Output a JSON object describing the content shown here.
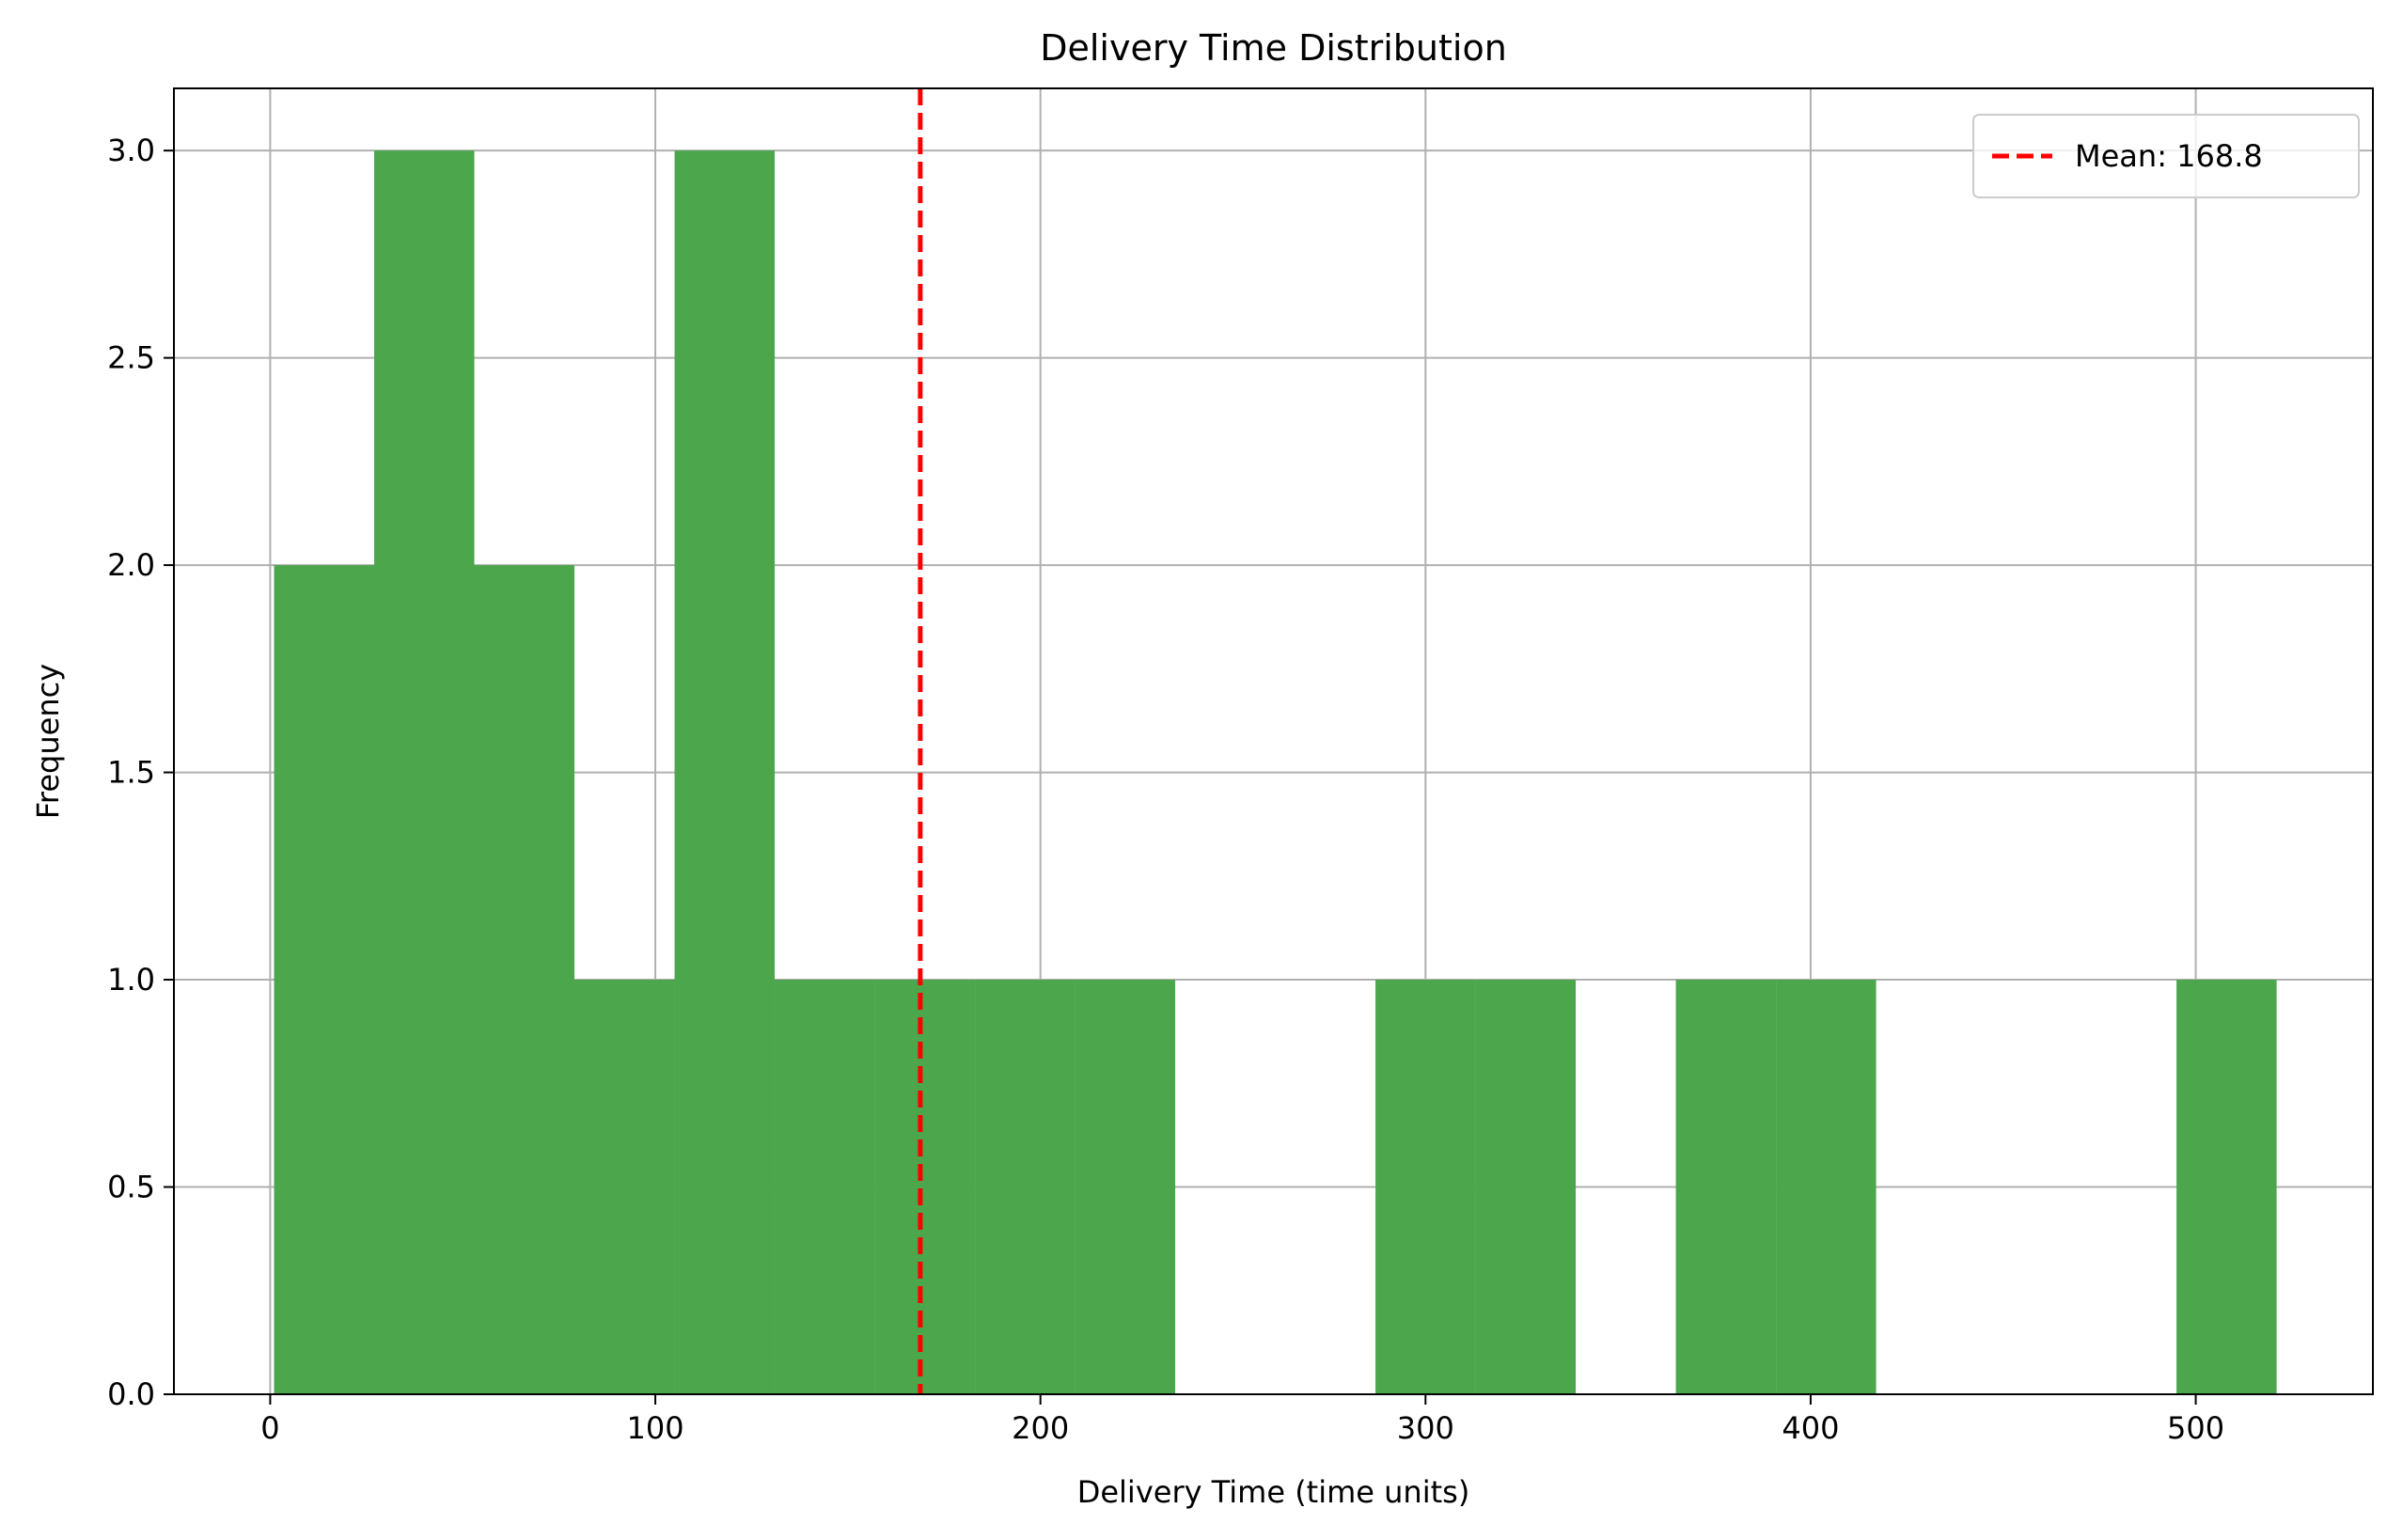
{
  "chart_data": {
    "type": "histogram",
    "title": "Delivery Time Distribution",
    "xlabel": "Delivery Time (time units)",
    "ylabel": "Frequency",
    "xlim": [
      -25,
      546
    ],
    "ylim": [
      0,
      3.15
    ],
    "xticks": [
      0,
      100,
      200,
      300,
      400,
      500
    ],
    "yticks": [
      0.0,
      0.5,
      1.0,
      1.5,
      2.0,
      2.5,
      3.0
    ],
    "grid": true,
    "legend_position": "top-right",
    "bar_color": "#4ca64c",
    "bins": [
      {
        "x0": 1,
        "x1": 27,
        "value": 2
      },
      {
        "x0": 27,
        "x1": 53,
        "value": 3
      },
      {
        "x0": 53,
        "x1": 79,
        "value": 2
      },
      {
        "x0": 79,
        "x1": 105,
        "value": 1
      },
      {
        "x0": 105,
        "x1": 131,
        "value": 3
      },
      {
        "x0": 131,
        "x1": 157,
        "value": 1
      },
      {
        "x0": 157,
        "x1": 183,
        "value": 1
      },
      {
        "x0": 183,
        "x1": 209,
        "value": 1
      },
      {
        "x0": 209,
        "x1": 235,
        "value": 1
      },
      {
        "x0": 235,
        "x1": 261,
        "value": 0
      },
      {
        "x0": 261,
        "x1": 287,
        "value": 0
      },
      {
        "x0": 287,
        "x1": 313,
        "value": 1
      },
      {
        "x0": 313,
        "x1": 339,
        "value": 1
      },
      {
        "x0": 339,
        "x1": 365,
        "value": 0
      },
      {
        "x0": 365,
        "x1": 391,
        "value": 1
      },
      {
        "x0": 391,
        "x1": 417,
        "value": 1
      },
      {
        "x0": 417,
        "x1": 443,
        "value": 0
      },
      {
        "x0": 443,
        "x1": 469,
        "value": 0
      },
      {
        "x0": 469,
        "x1": 495,
        "value": 0
      },
      {
        "x0": 495,
        "x1": 521,
        "value": 1
      }
    ],
    "mean_line": {
      "value": 168.8,
      "label": "Mean: 168.8",
      "color": "#ff0000"
    }
  }
}
